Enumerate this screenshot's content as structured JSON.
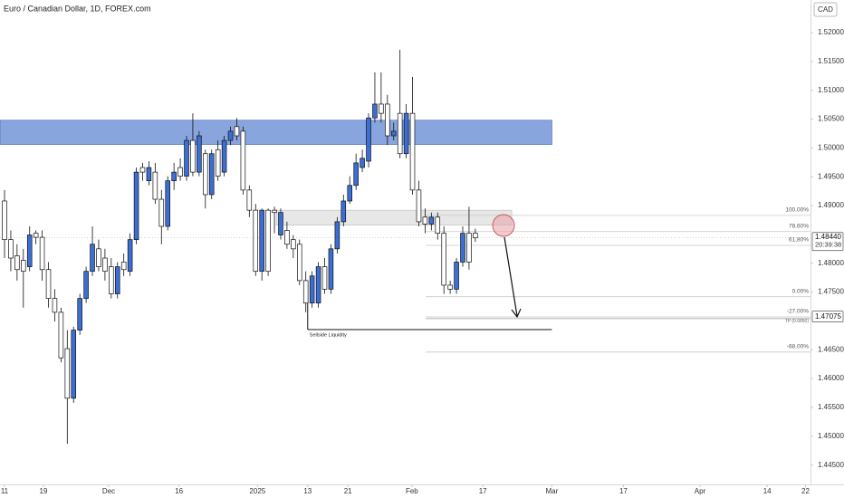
{
  "chart_data": {
    "type": "candlestick",
    "title": "Euro / Canadian Dollar, 1D, FOREX.com",
    "currency": "CAD",
    "colors": {
      "up": "#3b6fd6",
      "down": "#ffffff",
      "wick": "#111111"
    },
    "open": [
      1.4908,
      1.4841,
      1.4813,
      1.4805,
      1.4794,
      1.4852,
      1.4845,
      1.4789,
      1.4739,
      1.4715,
      1.4652,
      1.4566,
      1.4684,
      1.4739,
      1.4786,
      1.4825,
      1.4809,
      1.4794,
      1.4747,
      1.4802,
      1.4786,
      1.4841,
      1.4966,
      1.4943,
      1.4958,
      1.4911,
      1.4864,
      1.4943,
      1.4966,
      1.4951,
      1.5013,
      1.4958,
      1.499,
      1.4919,
      1.4997,
      1.4958,
      1.5013,
      1.5037,
      1.5029,
      1.4927,
      1.4892,
      1.4786,
      1.4892,
      1.4892,
      1.4849,
      1.4857,
      1.4841,
      1.4833,
      1.477,
      1.4731,
      1.4731,
      1.4794,
      1.4755,
      1.4825,
      1.4872,
      1.4908,
      1.4935,
      1.4966,
      1.4977,
      1.5052,
      1.5076,
      1.5076,
      1.5021,
      1.506,
      1.499,
      1.506,
      1.4927,
      1.488,
      1.4868,
      1.488,
      1.4852,
      1.4762,
      1.4755,
      1.4802,
      1.4852,
      1.4852
    ],
    "high": [
      1.4927,
      1.4857,
      1.4833,
      1.4825,
      1.4864,
      1.4857,
      1.4857,
      1.4802,
      1.4755,
      1.4723,
      1.4684,
      1.469,
      1.4747,
      1.4794,
      1.4864,
      1.4841,
      1.4825,
      1.4809,
      1.4802,
      1.4817,
      1.4852,
      1.4966,
      1.4974,
      1.4977,
      1.4974,
      1.4927,
      1.4951,
      1.4974,
      1.4982,
      1.5021,
      1.506,
      1.5029,
      1.4997,
      1.4997,
      1.5013,
      1.5021,
      1.5037,
      1.5052,
      1.5037,
      1.4935,
      1.4903,
      1.4895,
      1.4895,
      1.4898,
      1.4895,
      1.4872,
      1.4849,
      1.4841,
      1.4786,
      1.4786,
      1.4802,
      1.4809,
      1.4833,
      1.488,
      1.4919,
      1.4951,
      1.499,
      1.4997,
      1.506,
      1.5131,
      1.5131,
      1.5092,
      1.5044,
      1.517,
      1.5076,
      1.5123,
      1.4943,
      1.4895,
      1.4888,
      1.4888,
      1.4864,
      1.477,
      1.4809,
      1.4864,
      1.4898,
      1.486
    ],
    "low": [
      1.4809,
      1.4786,
      1.477,
      1.4723,
      1.4786,
      1.4833,
      1.477,
      1.4723,
      1.4699,
      1.4628,
      1.4487,
      1.4558,
      1.4676,
      1.4731,
      1.4778,
      1.4786,
      1.477,
      1.4739,
      1.4739,
      1.4778,
      1.4778,
      1.4833,
      1.4943,
      1.4935,
      1.4903,
      1.4833,
      1.4857,
      1.4927,
      1.4943,
      1.4943,
      1.4951,
      1.4951,
      1.4895,
      1.4911,
      1.4943,
      1.4951,
      1.5005,
      1.5013,
      1.4919,
      1.488,
      1.4778,
      1.477,
      1.4778,
      1.4852,
      1.4841,
      1.4825,
      1.4809,
      1.4762,
      1.4715,
      1.4723,
      1.4723,
      1.4747,
      1.4747,
      1.4817,
      1.4864,
      1.4903,
      1.4927,
      1.4958,
      1.4966,
      1.5044,
      1.5044,
      1.5005,
      1.5013,
      1.4982,
      1.4982,
      1.4919,
      1.4864,
      1.4852,
      1.4857,
      1.4841,
      1.4747,
      1.4747,
      1.4747,
      1.4794,
      1.4789,
      1.4837
    ],
    "close": [
      1.4841,
      1.4809,
      1.4789,
      1.4786,
      1.4849,
      1.4845,
      1.4789,
      1.4739,
      1.4715,
      1.4636,
      1.4566,
      1.4684,
      1.4739,
      1.4786,
      1.4833,
      1.4794,
      1.4786,
      1.4747,
      1.4794,
      1.4789,
      1.4841,
      1.4958,
      1.4958,
      1.4966,
      1.4911,
      1.4864,
      1.4943,
      1.4958,
      1.4951,
      1.5013,
      1.4958,
      1.5021,
      1.4919,
      1.499,
      1.4951,
      1.5013,
      1.5029,
      1.5021,
      1.4927,
      1.4892,
      1.4786,
      1.4892,
      1.4786,
      1.4888,
      1.4888,
      1.4833,
      1.4825,
      1.477,
      1.4731,
      1.4778,
      1.4794,
      1.4755,
      1.4825,
      1.4872,
      1.4908,
      1.4935,
      1.4974,
      1.4982,
      1.5052,
      1.5076,
      1.506,
      1.5021,
      1.5029,
      1.499,
      1.506,
      1.4927,
      1.4872,
      1.4868,
      1.488,
      1.4852,
      1.4762,
      1.4755,
      1.4802,
      1.4852,
      1.4802,
      1.4844
    ],
    "xlim": [
      -0.72,
      128.4
    ],
    "xticks": [
      {
        "value": 0,
        "label": "11"
      },
      {
        "value": 6.2,
        "label": "19"
      },
      {
        "value": 16.6,
        "label": "Dec"
      },
      {
        "value": 27.8,
        "label": "16"
      },
      {
        "value": 40.3,
        "label": "2025"
      },
      {
        "value": 48.3,
        "label": "13"
      },
      {
        "value": 54.7,
        "label": "21"
      },
      {
        "value": 64.9,
        "label": "Feb"
      },
      {
        "value": 76.2,
        "label": "17"
      },
      {
        "value": 87.2,
        "label": "Mar"
      },
      {
        "value": 98.6,
        "label": "17"
      },
      {
        "value": 110.8,
        "label": "Apr"
      },
      {
        "value": 121.5,
        "label": "14"
      },
      {
        "value": 127.6,
        "label": "22"
      }
    ],
    "ylim": [
      1.44165,
      1.52565
    ],
    "yticks": [
      {
        "value": 1.52,
        "label": "1.52000"
      },
      {
        "value": 1.515,
        "label": "1.51500"
      },
      {
        "value": 1.51,
        "label": "1.51000"
      },
      {
        "value": 1.505,
        "label": "1.50500"
      },
      {
        "value": 1.5,
        "label": "1.50000"
      },
      {
        "value": 1.495,
        "label": "1.49500"
      },
      {
        "value": 1.49,
        "label": "1.49000"
      },
      {
        "value": 1.48,
        "label": "1.48000"
      },
      {
        "value": 1.475,
        "label": "1.47500"
      },
      {
        "value": 1.465,
        "label": "1.46500"
      },
      {
        "value": 1.46,
        "label": "1.46000"
      },
      {
        "value": 1.455,
        "label": "1.45500"
      },
      {
        "value": 1.45,
        "label": "1.45000"
      },
      {
        "value": 1.445,
        "label": "1.44500"
      }
    ],
    "last_price": {
      "value": 1.4844,
      "label": "1.48440",
      "countdown": "20:39:38"
    },
    "target_price": {
      "value": 1.47075,
      "label": "1.47075"
    },
    "zones": [
      {
        "ylim": [
          1.5006,
          1.5048
        ],
        "xlim": [
          -0.72,
          87.2
        ],
        "color": "#6b8fd6"
      },
      {
        "ylim": [
          1.4866,
          1.4892
        ],
        "xlim": [
          43.3,
          80.8
        ],
        "color": "#e4e4e4"
      }
    ],
    "fib": {
      "xlim": [
        67.1,
        128.4
      ],
      "levels": [
        {
          "label": "100.00%",
          "value": 1.4883
        },
        {
          "label": "78.60%",
          "value": 1.4855
        },
        {
          "label": "61.80%",
          "value": 1.4831
        },
        {
          "label": "0.00%",
          "value": 1.4742
        },
        {
          "label": "-27.00%",
          "value": 1.4707
        },
        {
          "label": "-68.00%",
          "value": 1.4646
        }
      ]
    },
    "tp_line": {
      "label": "TP (0.6850)",
      "value": 1.4704
    },
    "liquidity": {
      "label": "Sellside Liquidity",
      "value": 1.4685,
      "from": 1.4742,
      "xlim": [
        48.3,
        87.2
      ]
    }
  }
}
